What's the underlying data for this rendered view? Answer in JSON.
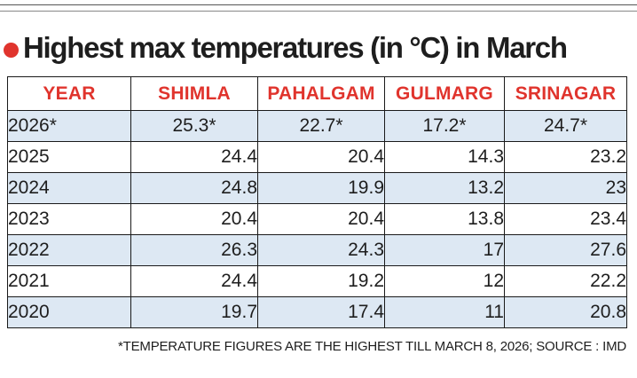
{
  "title": "Highest max temperatures (in °C) in March",
  "colors": {
    "accent": "#e0342d",
    "row_shade": "#dde8f3",
    "text": "#1e1e1e"
  },
  "chart_data": {
    "type": "table",
    "title": "Highest max temperatures (in °C) in March",
    "columns": [
      "YEAR",
      "SHIMLA",
      "PAHALGAM",
      "GULMARG",
      "SRINAGAR"
    ],
    "rows": [
      [
        "2026*",
        "25.3*",
        "22.7*",
        "17.2*",
        "24.7*"
      ],
      [
        "2025",
        "24.4",
        "20.4",
        "14.3",
        "23.2"
      ],
      [
        "2024",
        "24.8",
        "19.9",
        "13.2",
        "23"
      ],
      [
        "2023",
        "20.4",
        "20.4",
        "13.8",
        "23.4"
      ],
      [
        "2022",
        "26.3",
        "24.3",
        "17",
        "27.6"
      ],
      [
        "2021",
        "24.4",
        "19.2",
        "12",
        "22.2"
      ],
      [
        "2020",
        "19.7",
        "17.4",
        "11",
        "20.8"
      ]
    ]
  },
  "footnote": "*TEMPERATURE FIGURES ARE THE HIGHEST TILL MARCH 8, 2026; SOURCE : IMD"
}
